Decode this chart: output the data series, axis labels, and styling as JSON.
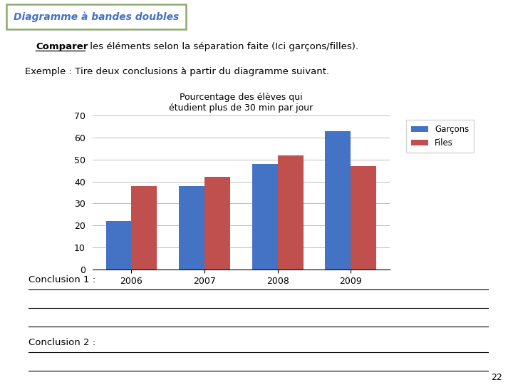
{
  "title_box": "Diagramme à bandes doubles",
  "line1_bold": "Comparer",
  "line1_rest": " les éléments selon la séparation faite (Ici garçons/filles).",
  "line2": "Exemple : Tire deux conclusions à partir du diagramme suivant.",
  "chart_title_line1": "Pourcentage des élèves qui",
  "chart_title_line2": "étudient plus de 30 min par jour",
  "categories": [
    "2006",
    "2007",
    "2008",
    "2009"
  ],
  "garcons": [
    22,
    38,
    48,
    63
  ],
  "filles": [
    38,
    42,
    52,
    47
  ],
  "color_garcons": "#4472C4",
  "color_filles": "#C0504D",
  "ylim": [
    0,
    70
  ],
  "yticks": [
    0,
    10,
    20,
    30,
    40,
    50,
    60,
    70
  ],
  "legend_garcons": "Garçons",
  "legend_filles": "Files",
  "conclusion1": "Conclusion 1 : ",
  "conclusion2": "Conclusion 2 : ",
  "bg_color": "#FFFFFF",
  "grid_color": "#BBBBBB",
  "title_box_edge_color": "#8DAA6F",
  "title_text_color": "#4472C4",
  "page_number": "22",
  "bar_width": 0.35
}
